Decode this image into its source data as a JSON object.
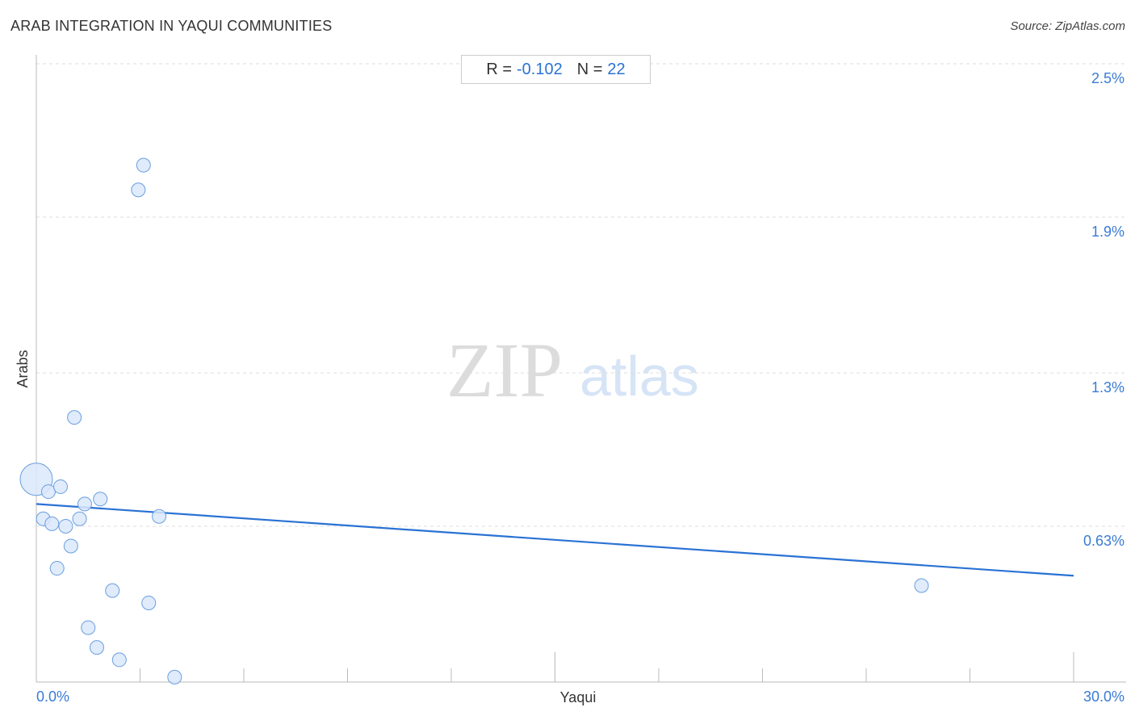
{
  "title": "ARAB INTEGRATION IN YAQUI COMMUNITIES",
  "source": "Source: ZipAtlas.com",
  "stats": {
    "r_label": "R =",
    "r_value": "-0.102",
    "n_label": "N =",
    "n_value": "22"
  },
  "watermark": {
    "zip": "ZIP",
    "atlas": "atlas"
  },
  "colors": {
    "point_fill": "#dbe8fa",
    "point_stroke": "#6a9fe0",
    "trend_line": "#2a72d4",
    "tick_text": "#3a7bd5",
    "grid": "#dddddd"
  },
  "chart_data": {
    "type": "scatter",
    "title": "ARAB INTEGRATION IN YAQUI COMMUNITIES",
    "xlabel": "Yaqui",
    "ylabel": "Arabs",
    "xlim": [
      0,
      30
    ],
    "ylim": [
      0,
      2.5
    ],
    "x_tick_labels": [
      {
        "value": 0,
        "label": "0.0%"
      },
      {
        "value": 30,
        "label": "30.0%"
      }
    ],
    "y_ticks": [
      {
        "value": 2.5,
        "label": "2.5%"
      },
      {
        "value": 1.88,
        "label": "1.9%"
      },
      {
        "value": 1.25,
        "label": "1.3%"
      },
      {
        "value": 0.63,
        "label": "0.63%"
      }
    ],
    "x_minor_ticks": [
      3,
      6,
      9,
      12,
      15,
      18,
      21,
      24,
      27,
      30
    ],
    "grid": true,
    "points": [
      {
        "x": 0.0,
        "y": 0.82,
        "size": "large"
      },
      {
        "x": 0.2,
        "y": 0.66
      },
      {
        "x": 0.35,
        "y": 0.77
      },
      {
        "x": 0.45,
        "y": 0.64
      },
      {
        "x": 0.6,
        "y": 0.46
      },
      {
        "x": 0.7,
        "y": 0.79
      },
      {
        "x": 0.85,
        "y": 0.63
      },
      {
        "x": 1.0,
        "y": 0.55
      },
      {
        "x": 1.1,
        "y": 1.07
      },
      {
        "x": 1.25,
        "y": 0.66
      },
      {
        "x": 1.4,
        "y": 0.72
      },
      {
        "x": 1.5,
        "y": 0.22
      },
      {
        "x": 1.75,
        "y": 0.14
      },
      {
        "x": 1.85,
        "y": 0.74
      },
      {
        "x": 2.2,
        "y": 0.37
      },
      {
        "x": 2.4,
        "y": 0.09
      },
      {
        "x": 2.95,
        "y": 1.99
      },
      {
        "x": 3.1,
        "y": 2.09
      },
      {
        "x": 3.25,
        "y": 0.32
      },
      {
        "x": 3.55,
        "y": 0.67
      },
      {
        "x": 4.0,
        "y": 0.02
      },
      {
        "x": 25.6,
        "y": 0.39
      }
    ],
    "trendline": {
      "x": [
        0,
        30
      ],
      "y": [
        0.72,
        0.43
      ]
    }
  }
}
